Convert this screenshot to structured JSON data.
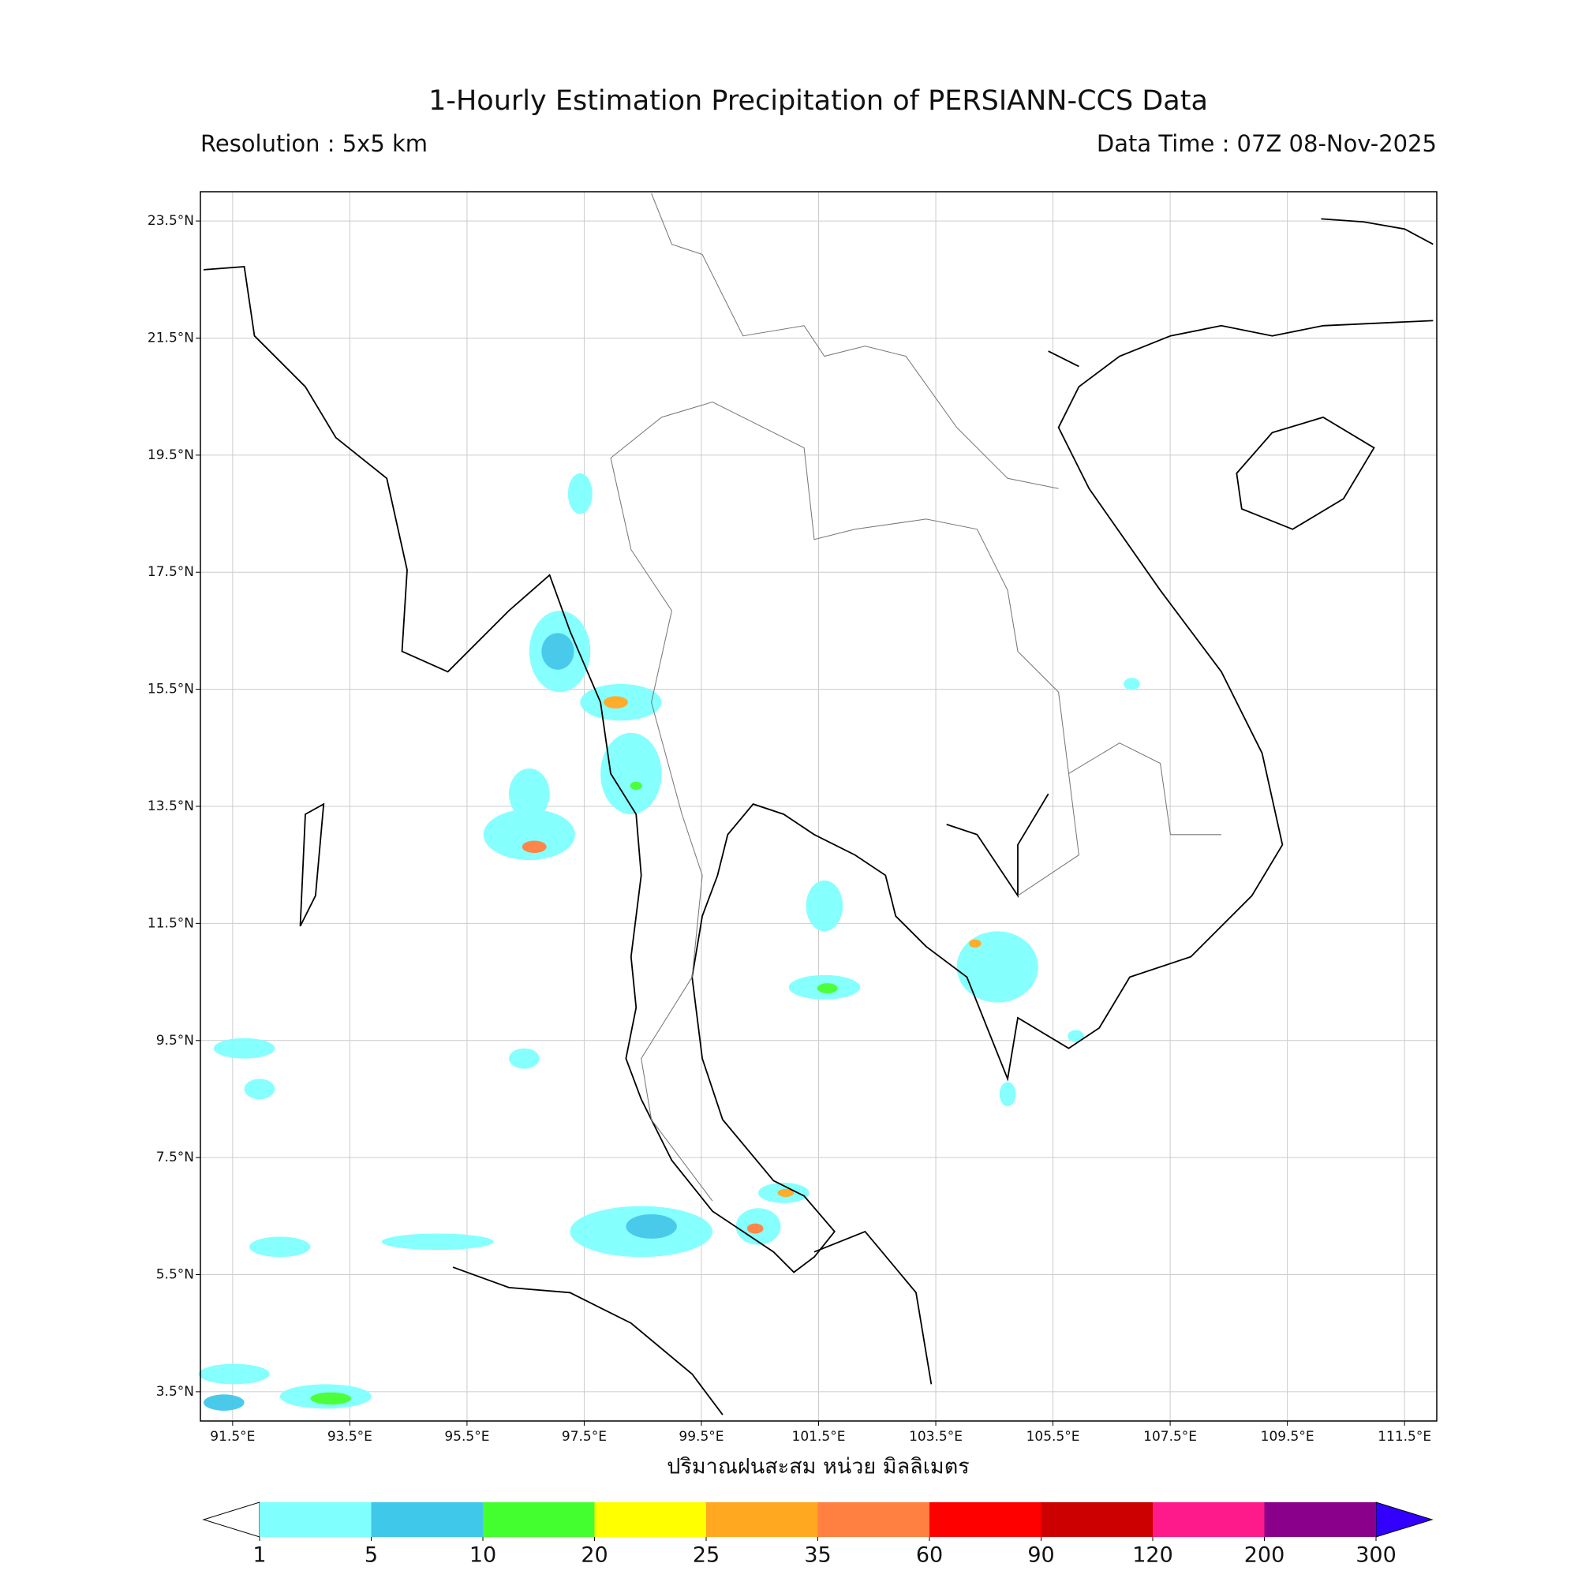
{
  "header": {
    "title": "1-Hourly Estimation Precipitation of PERSIANN-CCS Data",
    "resolution": "Resolution : 5x5 km",
    "data_time": "Data Time : 07Z 08-Nov-2025"
  },
  "map": {
    "xlim": [
      90.95,
      112.05
    ],
    "ylim": [
      3.0,
      24.0
    ],
    "grid": true,
    "xticks": [
      {
        "value": 91.5,
        "label": "91.5°E"
      },
      {
        "value": 93.5,
        "label": "93.5°E"
      },
      {
        "value": 95.5,
        "label": "95.5°E"
      },
      {
        "value": 97.5,
        "label": "97.5°E"
      },
      {
        "value": 99.5,
        "label": "99.5°E"
      },
      {
        "value": 101.5,
        "label": "101.5°E"
      },
      {
        "value": 103.5,
        "label": "103.5°E"
      },
      {
        "value": 105.5,
        "label": "105.5°E"
      },
      {
        "value": 107.5,
        "label": "107.5°E"
      },
      {
        "value": 109.5,
        "label": "109.5°E"
      },
      {
        "value": 111.5,
        "label": "111.5°E"
      }
    ],
    "yticks": [
      {
        "value": 3.5,
        "label": "3.5°N"
      },
      {
        "value": 5.5,
        "label": "5.5°N"
      },
      {
        "value": 7.5,
        "label": "7.5°N"
      },
      {
        "value": 9.5,
        "label": "9.5°N"
      },
      {
        "value": 11.5,
        "label": "11.5°N"
      },
      {
        "value": 13.5,
        "label": "13.5°N"
      },
      {
        "value": 15.5,
        "label": "15.5°N"
      },
      {
        "value": 17.5,
        "label": "17.5°N"
      },
      {
        "value": 19.5,
        "label": "19.5°N"
      },
      {
        "value": 21.5,
        "label": "21.5°N"
      },
      {
        "value": 23.5,
        "label": "23.5°N"
      }
    ],
    "xlabel": "ปริมาณฝนสะสม หน่วย มิลลิเมตร"
  },
  "colorbar": {
    "levels": [
      1,
      5,
      10,
      20,
      25,
      35,
      60,
      90,
      120,
      200,
      300
    ],
    "colors": [
      "#80ffff",
      "#40c8ea",
      "#44ff30",
      "#ffff00",
      "#ffa820",
      "#ff8040",
      "#ff0000",
      "#cc0000",
      "#ff1a8c",
      "#8b008b"
    ],
    "under_color": "#ffffff",
    "over_color": "#3300ff"
  }
}
